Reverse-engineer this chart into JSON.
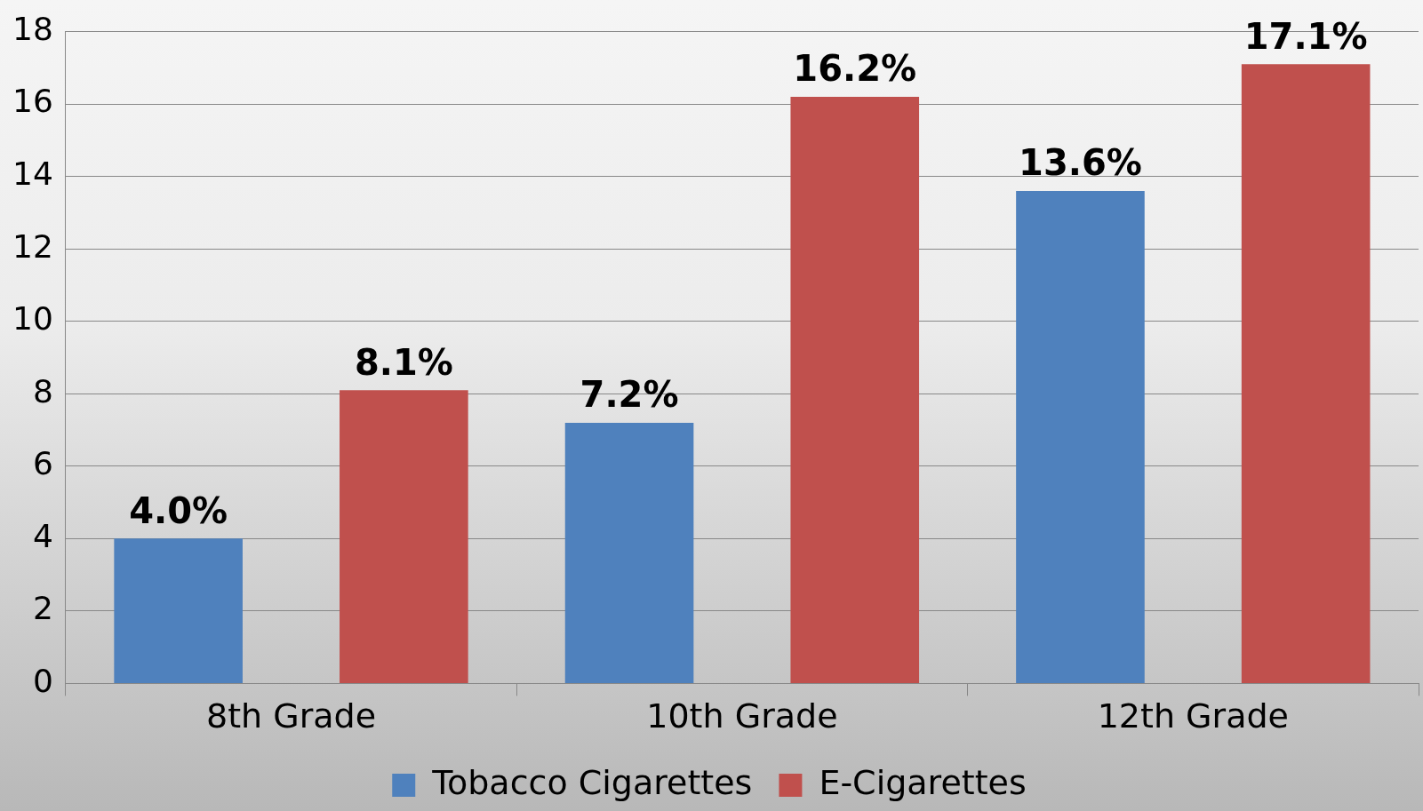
{
  "chart_data": {
    "type": "bar",
    "categories": [
      "8th Grade",
      "10th Grade",
      "12th Grade"
    ],
    "series": [
      {
        "name": "Tobacco Cigarettes",
        "color": "#4f81bd",
        "values": [
          4.0,
          7.2,
          13.6
        ],
        "value_labels": [
          "4.0%",
          "7.2%",
          "13.6%"
        ]
      },
      {
        "name": "E-Cigarettes",
        "color": "#c0504d",
        "values": [
          8.1,
          16.2,
          17.1
        ],
        "value_labels": [
          "8.1%",
          "16.2%",
          "17.1%"
        ]
      }
    ],
    "ylim": [
      0,
      18
    ],
    "yticks": [
      0,
      2,
      4,
      6,
      8,
      10,
      12,
      14,
      16,
      18
    ],
    "grid": "y",
    "legend": "bottom"
  }
}
